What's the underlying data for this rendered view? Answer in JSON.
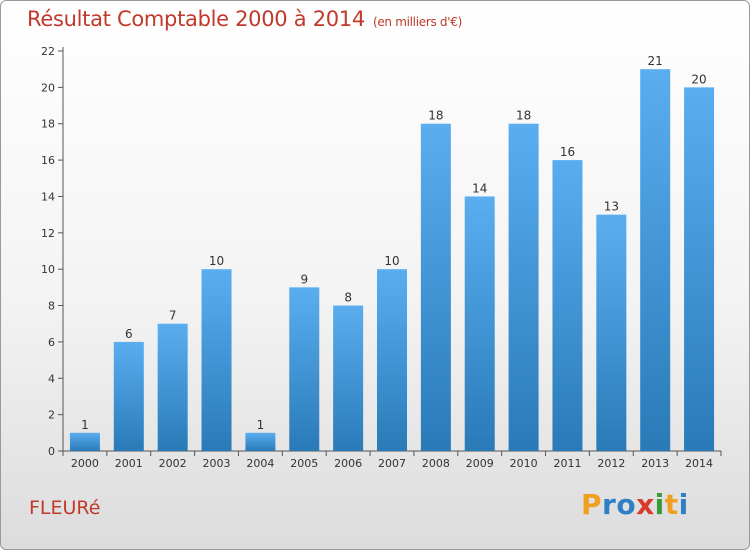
{
  "chart_data": {
    "type": "bar",
    "title": "Résultat Comptable 2000 à 2014",
    "unit_label": "(en milliers d'€)",
    "categories": [
      "2000",
      "2001",
      "2002",
      "2003",
      "2004",
      "2005",
      "2006",
      "2007",
      "2008",
      "2009",
      "2010",
      "2011",
      "2012",
      "2013",
      "2014"
    ],
    "values": [
      1,
      6,
      7,
      10,
      1,
      9,
      8,
      10,
      18,
      14,
      18,
      16,
      13,
      21,
      20
    ],
    "ylim": [
      0,
      22
    ],
    "yticks": [
      0,
      2,
      4,
      6,
      8,
      10,
      12,
      14,
      16,
      18,
      20,
      22
    ],
    "grid": false,
    "bar_color_top": "#5aaef0",
    "bar_color_bottom": "#2a7ab8"
  },
  "footer": {
    "commune": "FLEURé",
    "logo_letters": [
      "P",
      "r",
      "o",
      "x",
      "i",
      "t",
      "i"
    ],
    "logo_colors": [
      "#f0a020",
      "#2e7fc6",
      "#2e7fc6",
      "#d93a2b",
      "#3a9a3a",
      "#f0a020",
      "#2e7fc6"
    ]
  },
  "colors": {
    "title": "#c0392b",
    "axis": "#555555"
  }
}
